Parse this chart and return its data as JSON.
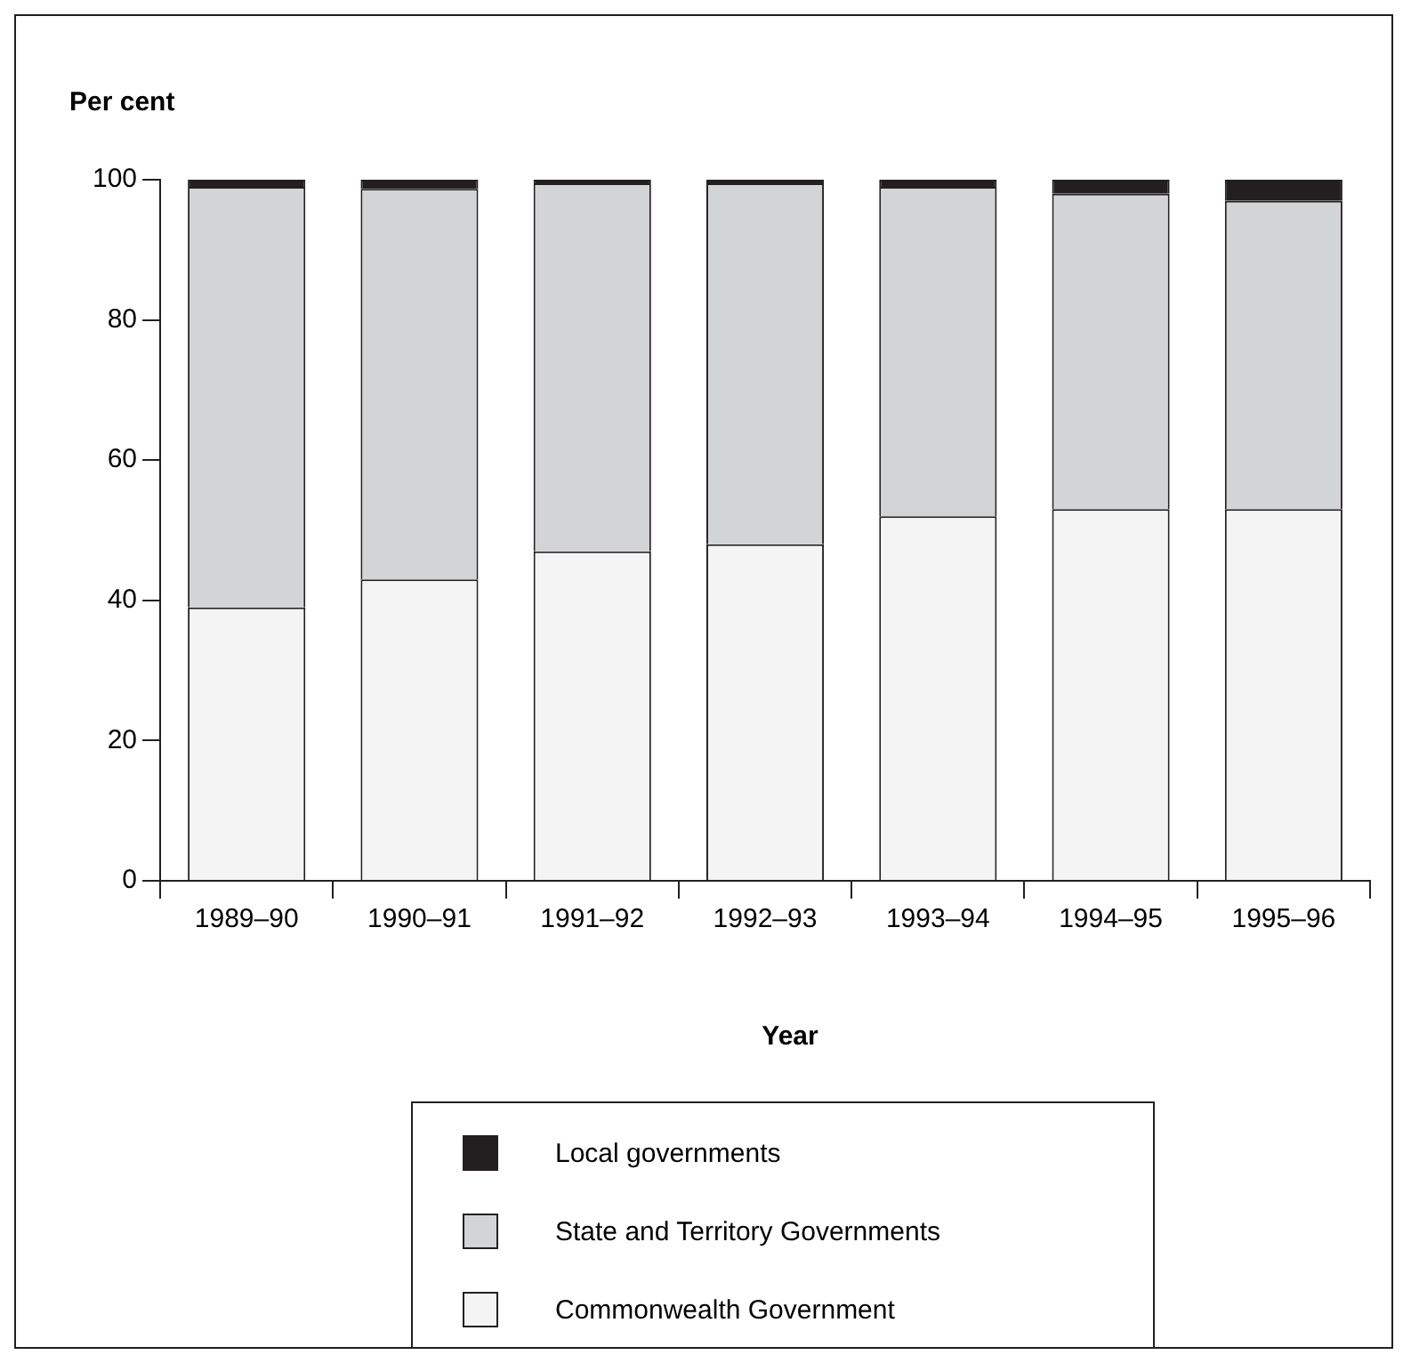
{
  "chart_data": {
    "type": "bar",
    "stacked": true,
    "ylabel": "Per cent",
    "xlabel": "Year",
    "categories": [
      "1989–90",
      "1990–91",
      "1991–92",
      "1992–93",
      "1993–94",
      "1994–95",
      "1995–96"
    ],
    "series": [
      {
        "name": "Commonwealth Government",
        "color": "#f4f4f4",
        "values": [
          39,
          43,
          47,
          48,
          52,
          53,
          53
        ]
      },
      {
        "name": "State and Territory Governments",
        "color": "#d3d4d6",
        "values": [
          60,
          55.7,
          52.5,
          51.5,
          47,
          45,
          44
        ]
      },
      {
        "name": "Local governments",
        "color": "#231f20",
        "values": [
          1,
          1.3,
          0.5,
          0.5,
          1,
          2,
          3
        ]
      }
    ],
    "ylim": [
      0,
      100
    ],
    "yticks": [
      0,
      20,
      40,
      60,
      80,
      100
    ],
    "grid": false,
    "legend": "bottom"
  }
}
